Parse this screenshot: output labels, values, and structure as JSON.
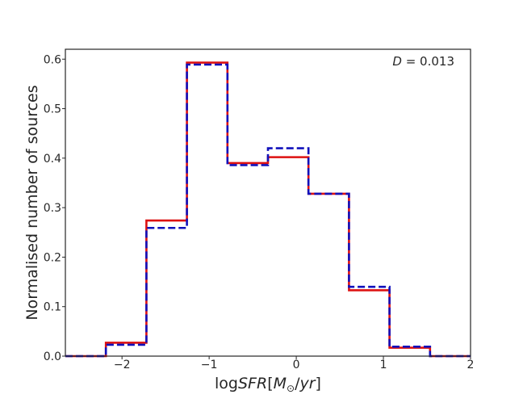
{
  "chart_data": {
    "type": "histogram",
    "xlabel": "logSFR[M⊙/yr]",
    "xlabel_parts": {
      "prefix": "log",
      "italic1": "SFR",
      "bracket_open": "[",
      "italic2": "M",
      "subscript": "⊙",
      "slash": "/",
      "italic3": "yr",
      "bracket_close": "]"
    },
    "ylabel": "Normalised number of sources",
    "annotation": {
      "italic": "D",
      "rest": " = 0.013"
    },
    "xlim": [
      -2.65,
      2.0
    ],
    "ylim": [
      0.0,
      0.62
    ],
    "grid": false,
    "xticks": [
      -2,
      -1,
      0,
      1,
      2
    ],
    "xtick_labels": [
      "−2",
      "−1",
      "0",
      "1",
      "2"
    ],
    "yticks": [
      0.0,
      0.1,
      0.2,
      0.3,
      0.4,
      0.5,
      0.6
    ],
    "ytick_labels": [
      "0.0",
      "0.1",
      "0.2",
      "0.3",
      "0.4",
      "0.5",
      "0.6"
    ],
    "bin_edges": [
      -2.65,
      -2.185,
      -1.72,
      -1.255,
      -0.79,
      -0.325,
      0.14,
      0.605,
      1.07,
      1.535,
      2.0
    ],
    "series": [
      {
        "style": "solid",
        "color": "#dd1111",
        "values": [
          0.0,
          0.027,
          0.274,
          0.593,
          0.39,
          0.402,
          0.328,
          0.133,
          0.017,
          0.0
        ]
      },
      {
        "style": "dashed",
        "color": "#1111bb",
        "values": [
          0.0,
          0.023,
          0.259,
          0.589,
          0.386,
          0.42,
          0.328,
          0.14,
          0.019,
          0.0
        ]
      }
    ]
  }
}
